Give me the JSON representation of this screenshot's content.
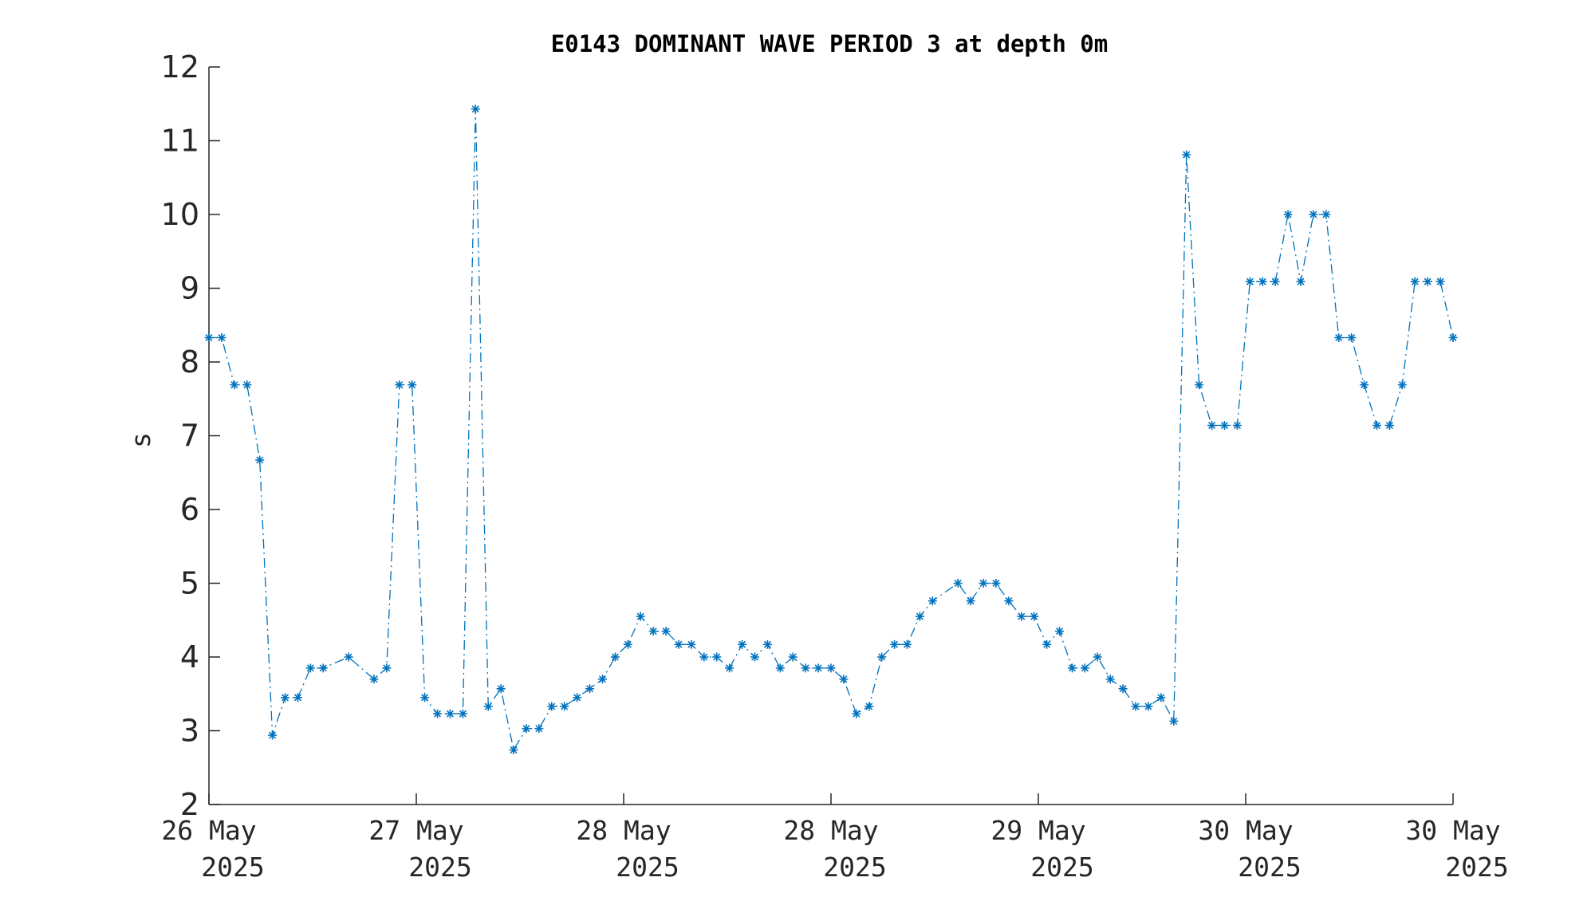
{
  "chart_data": {
    "type": "line",
    "title": "E0143 DOMINANT WAVE PERIOD 3 at depth 0m",
    "ylabel": "s",
    "xlabel": "",
    "ylim": [
      2,
      12
    ],
    "yticks": [
      2,
      3,
      4,
      5,
      6,
      7,
      8,
      9,
      10,
      11,
      12
    ],
    "xlim_days": [
      26.0,
      32.0
    ],
    "xticks": [
      {
        "day": 26.0,
        "line1": "26 May",
        "line2": "2025"
      },
      {
        "day": 27.0,
        "line1": "27 May",
        "line2": "2025"
      },
      {
        "day": 28.0,
        "line1": "28 May",
        "line2": "2025"
      },
      {
        "day": 29.0,
        "line1": "28 May",
        "line2": "2025"
      },
      {
        "day": 30.0,
        "line1": "29 May",
        "line2": "2025"
      },
      {
        "day": 31.0,
        "line1": "30 May",
        "line2": "2025"
      },
      {
        "day": 32.0,
        "line1": "30 May",
        "line2": "2025"
      }
    ],
    "line_style": "dash-dot",
    "marker": "asterisk",
    "color": "#0072BD",
    "grid": false,
    "series": [
      {
        "x_days": [
          26.0,
          26.0612,
          26.1224,
          26.1837,
          26.2449,
          26.3061,
          26.3673,
          26.4286,
          26.4898,
          26.551,
          26.6735,
          26.7959,
          26.8571,
          26.9184,
          26.9796,
          27.0408,
          27.102,
          27.1633,
          27.2245,
          27.2857,
          27.3469,
          27.4082,
          27.4694,
          27.5306,
          27.5918,
          27.6531,
          27.7143,
          27.7755,
          27.8367,
          27.898,
          27.9592,
          28.0204,
          28.0816,
          28.1429,
          28.2041,
          28.2653,
          28.3265,
          28.3878,
          28.449,
          28.5102,
          28.5714,
          28.6327,
          28.6939,
          28.7551,
          28.8163,
          28.8776,
          28.9388,
          29.0,
          29.0612,
          29.1224,
          29.1837,
          29.2449,
          29.3061,
          29.3673,
          29.4286,
          29.4898,
          29.6122,
          29.6735,
          29.7347,
          29.7959,
          29.8571,
          29.9184,
          29.9796,
          30.0408,
          30.102,
          30.1633,
          30.2245,
          30.2857,
          30.3469,
          30.4082,
          30.4694,
          30.5306,
          30.5918,
          30.6531,
          30.7143,
          30.7755,
          30.8367,
          30.898,
          30.9592,
          31.0204,
          31.0816,
          31.1429,
          31.2041,
          31.2653,
          31.3265,
          31.3878,
          31.449,
          31.5102,
          31.5714,
          31.6327,
          31.6939,
          31.7551,
          31.8163,
          31.8776,
          31.9388,
          32.0
        ],
        "y": [
          8.33,
          8.33,
          7.69,
          7.69,
          6.67,
          2.94,
          3.45,
          3.45,
          3.85,
          3.85,
          4.0,
          3.7,
          3.85,
          7.69,
          7.69,
          3.45,
          3.23,
          3.23,
          3.23,
          11.43,
          3.33,
          3.57,
          2.74,
          3.03,
          3.03,
          3.33,
          3.33,
          3.45,
          3.57,
          3.7,
          4.0,
          4.17,
          4.55,
          4.35,
          4.35,
          4.17,
          4.17,
          4.0,
          4.0,
          3.85,
          4.17,
          4.0,
          4.17,
          3.85,
          4.0,
          3.85,
          3.85,
          3.85,
          3.7,
          3.23,
          3.33,
          4.0,
          4.17,
          4.17,
          4.55,
          4.76,
          5.0,
          4.76,
          5.0,
          5.0,
          4.76,
          4.55,
          4.55,
          4.17,
          4.35,
          3.85,
          3.85,
          4.0,
          3.7,
          3.57,
          3.33,
          3.33,
          3.45,
          3.13,
          10.81,
          7.69,
          7.14,
          7.14,
          7.14,
          9.09,
          9.09,
          9.09,
          10.0,
          9.09,
          10.0,
          10.0,
          8.33,
          8.33,
          7.69,
          7.14,
          7.14,
          7.69,
          9.09,
          9.09,
          9.09,
          8.33
        ]
      }
    ]
  }
}
